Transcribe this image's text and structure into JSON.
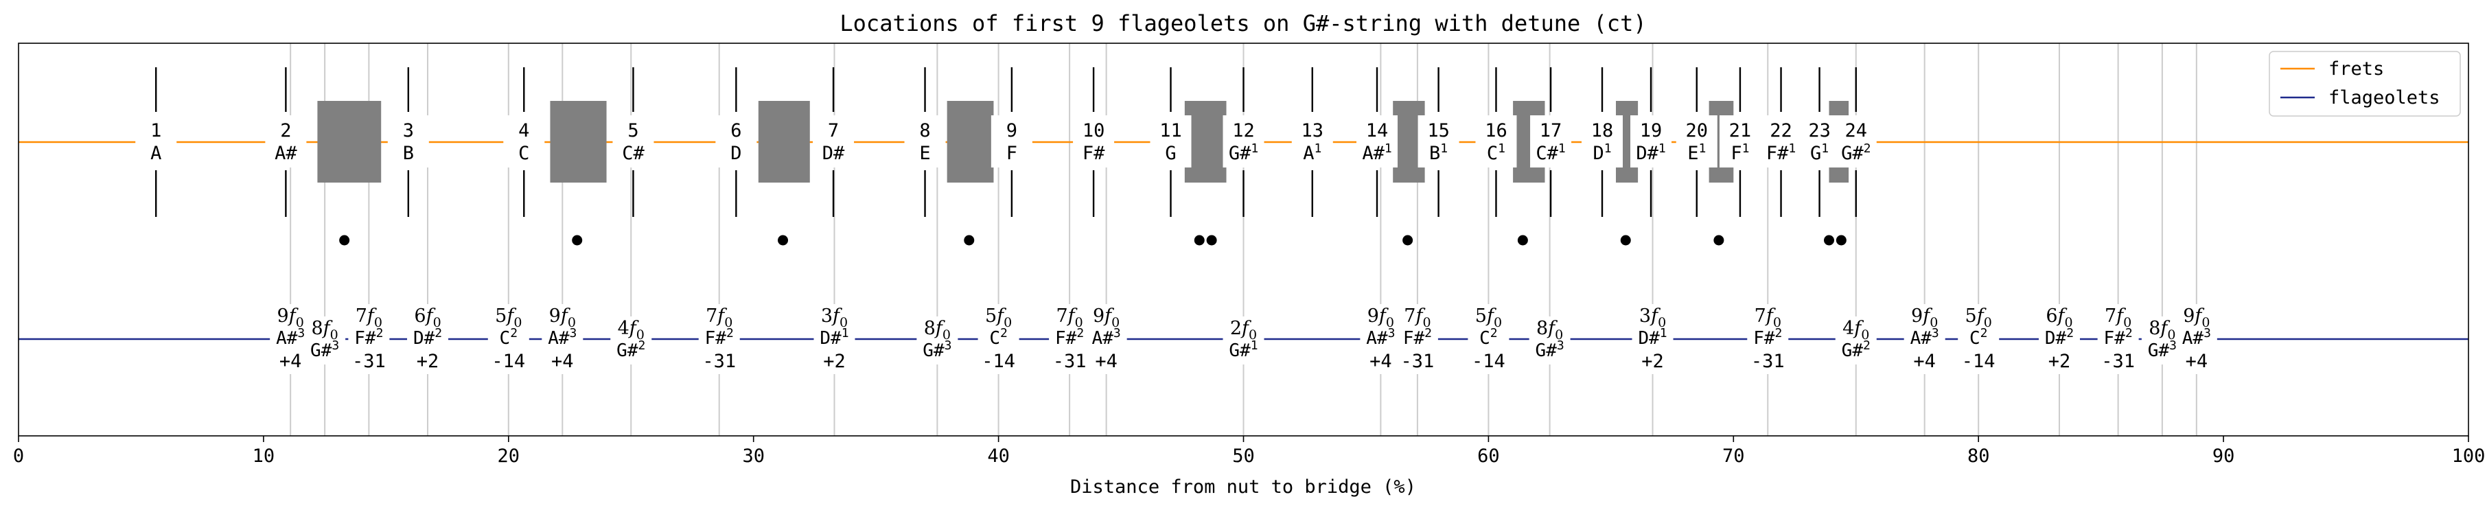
{
  "chart_data": {
    "type": "annotated-line",
    "title": "Locations of first 9 flageolets on G#-string with detune (ct)",
    "xlabel": "Distance from nut to bridge (%)",
    "ylabel": "",
    "xlim": [
      0,
      100
    ],
    "xticks": [
      "0",
      "10",
      "20",
      "30",
      "40",
      "50",
      "60",
      "70",
      "80",
      "90",
      "100"
    ],
    "legend": {
      "position": "top-right",
      "entries": [
        {
          "label": "frets",
          "color": "#ff8c00"
        },
        {
          "label": "flageolets",
          "color": "#1f2a8c"
        }
      ]
    },
    "colors": {
      "frets": "#ff8c00",
      "flageolets": "#1f2a8c",
      "gridline": "#cccccc",
      "box": "#808080",
      "dot": "#000000"
    },
    "frets": [
      {
        "num": "1",
        "note": "A",
        "sup": "",
        "x": 5.61
      },
      {
        "num": "2",
        "note": "A#",
        "sup": "",
        "x": 10.91
      },
      {
        "num": "3",
        "note": "B",
        "sup": "",
        "x": 15.91
      },
      {
        "num": "4",
        "note": "C",
        "sup": "",
        "x": 20.63
      },
      {
        "num": "5",
        "note": "C#",
        "sup": "",
        "x": 25.09
      },
      {
        "num": "6",
        "note": "D",
        "sup": "",
        "x": 29.29
      },
      {
        "num": "7",
        "note": "D#",
        "sup": "",
        "x": 33.26
      },
      {
        "num": "8",
        "note": "E",
        "sup": "",
        "x": 37.0
      },
      {
        "num": "9",
        "note": "F",
        "sup": "",
        "x": 40.54
      },
      {
        "num": "10",
        "note": "F#",
        "sup": "",
        "x": 43.88
      },
      {
        "num": "11",
        "note": "G",
        "sup": "",
        "x": 47.03
      },
      {
        "num": "12",
        "note": "G#",
        "sup": "1",
        "x": 50.0
      },
      {
        "num": "13",
        "note": "A",
        "sup": "1",
        "x": 52.81
      },
      {
        "num": "14",
        "note": "A#",
        "sup": "1",
        "x": 55.45
      },
      {
        "num": "15",
        "note": "B",
        "sup": "1",
        "x": 57.96
      },
      {
        "num": "16",
        "note": "C",
        "sup": "1",
        "x": 60.31
      },
      {
        "num": "17",
        "note": "C#",
        "sup": "1",
        "x": 62.54
      },
      {
        "num": "18",
        "note": "D",
        "sup": "1",
        "x": 64.64
      },
      {
        "num": "19",
        "note": "D#",
        "sup": "1",
        "x": 66.63
      },
      {
        "num": "20",
        "note": "E",
        "sup": "1",
        "x": 68.5
      },
      {
        "num": "21",
        "note": "F",
        "sup": "1",
        "x": 70.27
      },
      {
        "num": "22",
        "note": "F#",
        "sup": "1",
        "x": 71.94
      },
      {
        "num": "23",
        "note": "G",
        "sup": "1",
        "x": 73.51
      },
      {
        "num": "24",
        "note": "G#",
        "sup": "2",
        "x": 75.0
      }
    ],
    "fret_gaps": [
      {
        "from": 12.2,
        "to": 14.8
      },
      {
        "from": 21.7,
        "to": 24.0
      },
      {
        "from": 30.2,
        "to": 32.3
      },
      {
        "from": 37.9,
        "to": 39.8
      },
      {
        "from": 47.6,
        "to": 49.3
      },
      {
        "from": 56.1,
        "to": 57.4
      },
      {
        "from": 61.0,
        "to": 62.3
      },
      {
        "from": 65.2,
        "to": 66.1
      },
      {
        "from": 69.0,
        "to": 70.0
      },
      {
        "from": 73.9,
        "to": 74.7
      }
    ],
    "gap_dots": [
      13.3,
      22.8,
      31.2,
      38.8,
      48.2,
      48.7,
      56.7,
      61.4,
      65.6,
      69.4,
      73.9,
      74.4
    ],
    "flageolets": [
      {
        "harm": "9",
        "note": "A#",
        "sup": "3",
        "ct": "+4",
        "x": 11.1,
        "row": "mid"
      },
      {
        "harm": "8",
        "note": "G#",
        "sup": "3",
        "ct": "",
        "x": 12.5,
        "row": "low"
      },
      {
        "harm": "7",
        "note": "F#",
        "sup": "2",
        "ct": "-31",
        "x": 14.3,
        "row": "mid"
      },
      {
        "harm": "6",
        "note": "D#",
        "sup": "2",
        "ct": "+2",
        "x": 16.7,
        "row": "mid"
      },
      {
        "harm": "5",
        "note": "C",
        "sup": "2",
        "ct": "-14",
        "x": 20.0,
        "row": "mid"
      },
      {
        "harm": "9",
        "note": "A#",
        "sup": "3",
        "ct": "+4",
        "x": 22.2,
        "row": "mid"
      },
      {
        "harm": "4",
        "note": "G#",
        "sup": "2",
        "ct": "",
        "x": 25.0,
        "row": "low"
      },
      {
        "harm": "7",
        "note": "F#",
        "sup": "2",
        "ct": "-31",
        "x": 28.6,
        "row": "mid"
      },
      {
        "harm": "3",
        "note": "D#",
        "sup": "1",
        "ct": "+2",
        "x": 33.3,
        "row": "mid"
      },
      {
        "harm": "8",
        "note": "G#",
        "sup": "3",
        "ct": "",
        "x": 37.5,
        "row": "low"
      },
      {
        "harm": "5",
        "note": "C",
        "sup": "2",
        "ct": "-14",
        "x": 40.0,
        "row": "mid"
      },
      {
        "harm": "7",
        "note": "F#",
        "sup": "2",
        "ct": "-31",
        "x": 42.9,
        "row": "mid"
      },
      {
        "harm": "9",
        "note": "A#",
        "sup": "3",
        "ct": "+4",
        "x": 44.4,
        "row": "mid"
      },
      {
        "harm": "2",
        "note": "G#",
        "sup": "1",
        "ct": "",
        "x": 50.0,
        "row": "low"
      },
      {
        "harm": "9",
        "note": "A#",
        "sup": "3",
        "ct": "+4",
        "x": 55.6,
        "row": "mid"
      },
      {
        "harm": "7",
        "note": "F#",
        "sup": "2",
        "ct": "-31",
        "x": 57.1,
        "row": "mid"
      },
      {
        "harm": "5",
        "note": "C",
        "sup": "2",
        "ct": "-14",
        "x": 60.0,
        "row": "mid"
      },
      {
        "harm": "8",
        "note": "G#",
        "sup": "3",
        "ct": "",
        "x": 62.5,
        "row": "low"
      },
      {
        "harm": "3",
        "note": "D#",
        "sup": "1",
        "ct": "+2",
        "x": 66.7,
        "row": "mid"
      },
      {
        "harm": "7",
        "note": "F#",
        "sup": "2",
        "ct": "-31",
        "x": 71.4,
        "row": "mid"
      },
      {
        "harm": "4",
        "note": "G#",
        "sup": "2",
        "ct": "",
        "x": 75.0,
        "row": "low"
      },
      {
        "harm": "9",
        "note": "A#",
        "sup": "3",
        "ct": "+4",
        "x": 77.8,
        "row": "mid"
      },
      {
        "harm": "5",
        "note": "C",
        "sup": "2",
        "ct": "-14",
        "x": 80.0,
        "row": "mid"
      },
      {
        "harm": "6",
        "note": "D#",
        "sup": "2",
        "ct": "+2",
        "x": 83.3,
        "row": "mid"
      },
      {
        "harm": "7",
        "note": "F#",
        "sup": "2",
        "ct": "-31",
        "x": 85.7,
        "row": "mid"
      },
      {
        "harm": "8",
        "note": "G#",
        "sup": "3",
        "ct": "",
        "x": 87.5,
        "row": "low"
      },
      {
        "harm": "9",
        "note": "A#",
        "sup": "3",
        "ct": "+4",
        "x": 88.9,
        "row": "mid"
      }
    ],
    "harmonic_symbol": "f",
    "harmonic_subscript": "0"
  }
}
